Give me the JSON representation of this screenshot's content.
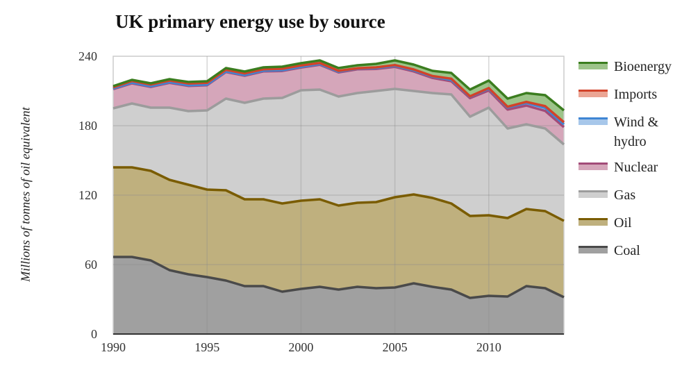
{
  "chart_data": {
    "type": "area",
    "stacked": true,
    "title": "UK primary energy use by source",
    "xlabel": "",
    "ylabel": "Millions of tonnes of oil equivalent",
    "xlim": [
      1990,
      2014
    ],
    "ylim": [
      0,
      240
    ],
    "grid": true,
    "legend_position": "right",
    "x_ticks": [
      "1990",
      "1995",
      "2000",
      "2005",
      "2010"
    ],
    "y_ticks": [
      "0",
      "60",
      "120",
      "180",
      "240"
    ],
    "x": [
      1990,
      1991,
      1992,
      1993,
      1994,
      1995,
      1996,
      1997,
      1998,
      1999,
      2000,
      2001,
      2002,
      2003,
      2004,
      2005,
      2006,
      2007,
      2008,
      2009,
      2010,
      2011,
      2012,
      2013,
      2014
    ],
    "series": [
      {
        "name": "Coal",
        "line_color": "#4a4a4a",
        "fill_color": "#a0a0a0",
        "values": [
          66.6,
          66.6,
          63.6,
          55.2,
          51.6,
          49.2,
          46.2,
          41.4,
          41.4,
          36.6,
          39.0,
          40.8,
          38.4,
          40.8,
          39.6,
          40.2,
          43.8,
          40.8,
          38.4,
          31.2,
          33.0,
          32.4,
          41.4,
          39.6,
          31.8
        ]
      },
      {
        "name": "Oil",
        "line_color": "#7a5c00",
        "fill_color": "#bfb07e",
        "values": [
          77.4,
          77.4,
          77.4,
          78.0,
          77.4,
          75.6,
          78.0,
          75.0,
          75.0,
          76.2,
          76.2,
          75.6,
          72.6,
          72.6,
          74.4,
          78.0,
          76.8,
          76.8,
          74.4,
          70.8,
          69.6,
          67.8,
          66.6,
          66.6,
          66.0
        ]
      },
      {
        "name": "Gas",
        "line_color": "#9c9c9c",
        "fill_color": "#cfcfcf",
        "values": [
          51.0,
          55.2,
          54.6,
          62.4,
          63.6,
          68.4,
          79.2,
          83.4,
          87.0,
          91.2,
          95.4,
          94.8,
          94.2,
          94.8,
          96.0,
          93.6,
          89.4,
          90.6,
          94.2,
          85.8,
          93.0,
          77.4,
          73.2,
          71.4,
          66.0
        ]
      },
      {
        "name": "Nuclear",
        "line_color": "#a24b78",
        "fill_color": "#d5a6ba",
        "values": [
          16.6,
          17.4,
          17.9,
          21.4,
          21.8,
          21.8,
          23.0,
          23.4,
          23.5,
          23.3,
          19.6,
          21.4,
          20.8,
          20.5,
          19.0,
          19.0,
          16.9,
          13.1,
          11.4,
          16.0,
          14.9,
          16.3,
          16.2,
          15.2,
          15.0
        ]
      },
      {
        "name": "Wind & hydro",
        "line_color": "#3f86d4",
        "fill_color": "#a7c7ea",
        "values": [
          0.6,
          0.6,
          0.6,
          0.6,
          0.6,
          0.6,
          0.5,
          0.6,
          0.7,
          0.7,
          0.6,
          0.7,
          0.7,
          0.7,
          0.8,
          0.9,
          1.0,
          1.1,
          1.2,
          1.3,
          1.4,
          1.9,
          2.2,
          2.6,
          2.4
        ]
      },
      {
        "name": "Imports",
        "line_color": "#d2432a",
        "fill_color": "#eba594",
        "values": [
          1.0,
          1.4,
          1.4,
          1.4,
          1.5,
          1.4,
          1.4,
          1.4,
          1.1,
          1.2,
          1.2,
          0.9,
          0.7,
          0.2,
          0.6,
          0.7,
          0.7,
          0.5,
          1.0,
          0.3,
          0.6,
          0.6,
          1.0,
          1.5,
          1.8
        ]
      },
      {
        "name": "Bioenergy",
        "line_color": "#3b7d1f",
        "fill_color": "#9dc48a",
        "values": [
          1.0,
          1.0,
          1.1,
          1.2,
          1.3,
          1.4,
          1.5,
          1.6,
          1.7,
          1.8,
          2.0,
          2.2,
          2.4,
          2.6,
          3.0,
          4.0,
          4.2,
          4.5,
          5.0,
          5.8,
          6.5,
          7.0,
          7.6,
          9.5,
          10.2
        ]
      }
    ],
    "legend": [
      {
        "label": "Bioenergy",
        "line_color": "#3b7d1f",
        "fill_color": "#9dc48a"
      },
      {
        "label": "Imports",
        "line_color": "#d2432a",
        "fill_color": "#eba594"
      },
      {
        "label": "Wind & hydro",
        "line_color": "#3f86d4",
        "fill_color": "#a7c7ea"
      },
      {
        "label": "Nuclear",
        "line_color": "#a24b78",
        "fill_color": "#d5a6ba"
      },
      {
        "label": "Gas",
        "line_color": "#9c9c9c",
        "fill_color": "#cfcfcf"
      },
      {
        "label": "Oil",
        "line_color": "#7a5c00",
        "fill_color": "#bfb07e"
      },
      {
        "label": "Coal",
        "line_color": "#4a4a4a",
        "fill_color": "#a0a0a0"
      }
    ]
  }
}
